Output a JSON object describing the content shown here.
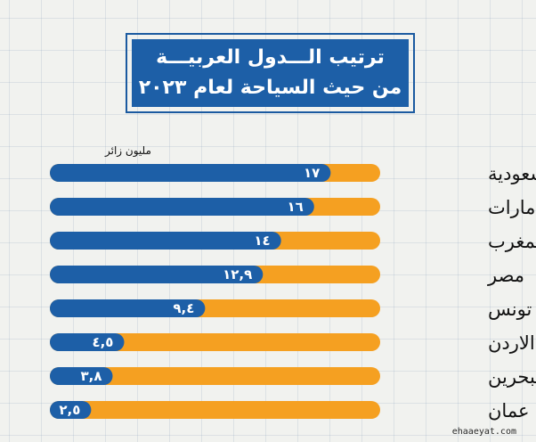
{
  "title": {
    "line1": "ترتيب الـــدول العربيـــة",
    "line2": "من حيث السياحة لعام ٢٠٢٣"
  },
  "unit_label": "مليون زائر",
  "watermark": "ehaaeyat.com",
  "colors": {
    "blue": "#1d5fa7",
    "orange": "#f5a021",
    "background": "#f1f2ef"
  },
  "chart_data": {
    "type": "bar",
    "orientation": "horizontal",
    "categories": [
      "السعودية",
      "الامارات",
      "المغرب",
      "مصر",
      "تونس",
      "الاردن",
      "البحرين",
      "عمان"
    ],
    "values": [
      17,
      16,
      14,
      12.9,
      9.4,
      4.5,
      3.8,
      2.5
    ],
    "value_labels": [
      "١٧",
      "١٦",
      "١٤",
      "١٢,٩",
      "٩,٤",
      "٤,٥",
      "٣,٨",
      "٢,٥"
    ],
    "xlim": [
      0,
      20
    ],
    "ylabel": "مليون زائر",
    "grid": true
  }
}
